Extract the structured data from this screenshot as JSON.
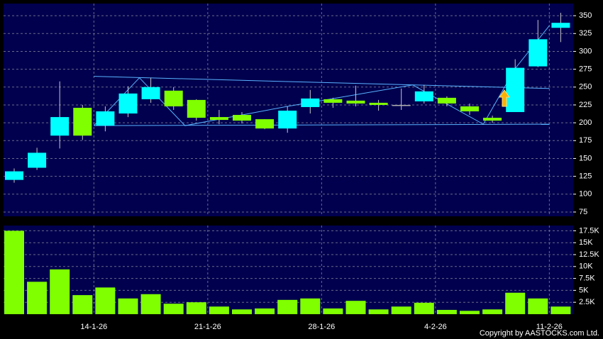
{
  "chart_data": [
    {
      "type": "candlestick",
      "categories": [
        null,
        null,
        null,
        null,
        null,
        null,
        null,
        null,
        null,
        null,
        null,
        null,
        null,
        null,
        null,
        null,
        null,
        null,
        null,
        null,
        null,
        null,
        null,
        null,
        null
      ],
      "open": [
        120,
        137,
        182,
        221,
        196,
        213,
        233,
        245,
        232,
        208,
        211,
        205,
        192,
        222,
        233,
        231,
        228,
        225,
        230,
        235,
        223,
        207,
        215,
        279,
        333
      ],
      "high": [
        136,
        165,
        258,
        225,
        223,
        251,
        263,
        250,
        233,
        218,
        215,
        205,
        223,
        246,
        235,
        252,
        232,
        248,
        253,
        237,
        227,
        210,
        289,
        344,
        354
      ],
      "low": [
        116,
        134,
        164,
        176,
        188,
        208,
        228,
        218,
        203,
        198,
        199,
        191,
        186,
        213,
        221,
        223,
        217,
        218,
        227,
        223,
        211,
        200,
        215,
        278,
        313
      ],
      "close": [
        132,
        158,
        208,
        182,
        216,
        241,
        250,
        223,
        207,
        204,
        203,
        192,
        217,
        234,
        228,
        227,
        225,
        225,
        244,
        227,
        216,
        203,
        277,
        317,
        340
      ],
      "up_color": "#00ffff",
      "down_color": "#80ff00",
      "flat_color": "#b0b0b0",
      "ylim": [
        69,
        367
      ],
      "yticks": [
        75,
        100,
        125,
        150,
        175,
        200,
        225,
        250,
        275,
        300,
        325,
        350
      ],
      "xticks": [
        {
          "value": 3.5,
          "label": "14-1-26"
        },
        {
          "value": 8.5,
          "label": "21-1-26"
        },
        {
          "value": 13.5,
          "label": "28-1-26"
        },
        {
          "value": 18.5,
          "label": "4-2-26"
        },
        {
          "value": 23.5,
          "label": "11-2-26"
        }
      ],
      "grid": true,
      "lines": [
        {
          "color": "#5ab4ff",
          "x": [
            3.5,
            23.5
          ],
          "y": [
            265,
            248
          ]
        },
        {
          "color": "#5ab4ff",
          "x": [
            3.5,
            23.5
          ],
          "y": [
            196,
            198
          ]
        },
        {
          "color": "#5ab4ff",
          "x": [
            3.5,
            5.5,
            7.5,
            12,
            17.5,
            20.6,
            22,
            23.5
          ],
          "y": [
            196,
            263,
            196,
            223,
            253,
            198,
            276,
            336
          ]
        }
      ]
    },
    {
      "type": "bar",
      "values": [
        17500,
        6800,
        9400,
        4000,
        5600,
        3300,
        4200,
        2200,
        2500,
        1600,
        1000,
        1200,
        3000,
        3300,
        1200,
        2800,
        1000,
        1600,
        2400,
        900,
        700,
        1000,
        4500,
        3300,
        1600
      ],
      "color": "#80ff00",
      "ylim": [
        0,
        18600
      ],
      "yticks": [
        {
          "value": 2500,
          "label": "2.5K"
        },
        {
          "value": 5000,
          "label": "5K"
        },
        {
          "value": 7500,
          "label": "7.5K"
        },
        {
          "value": 10000,
          "label": "10K"
        },
        {
          "value": 12500,
          "label": "12.5K"
        },
        {
          "value": 15000,
          "label": "15K"
        },
        {
          "value": 17500,
          "label": "17.5K"
        }
      ],
      "grid": true
    }
  ],
  "footer": "Copyright by AASTOCKS.com Ltd."
}
